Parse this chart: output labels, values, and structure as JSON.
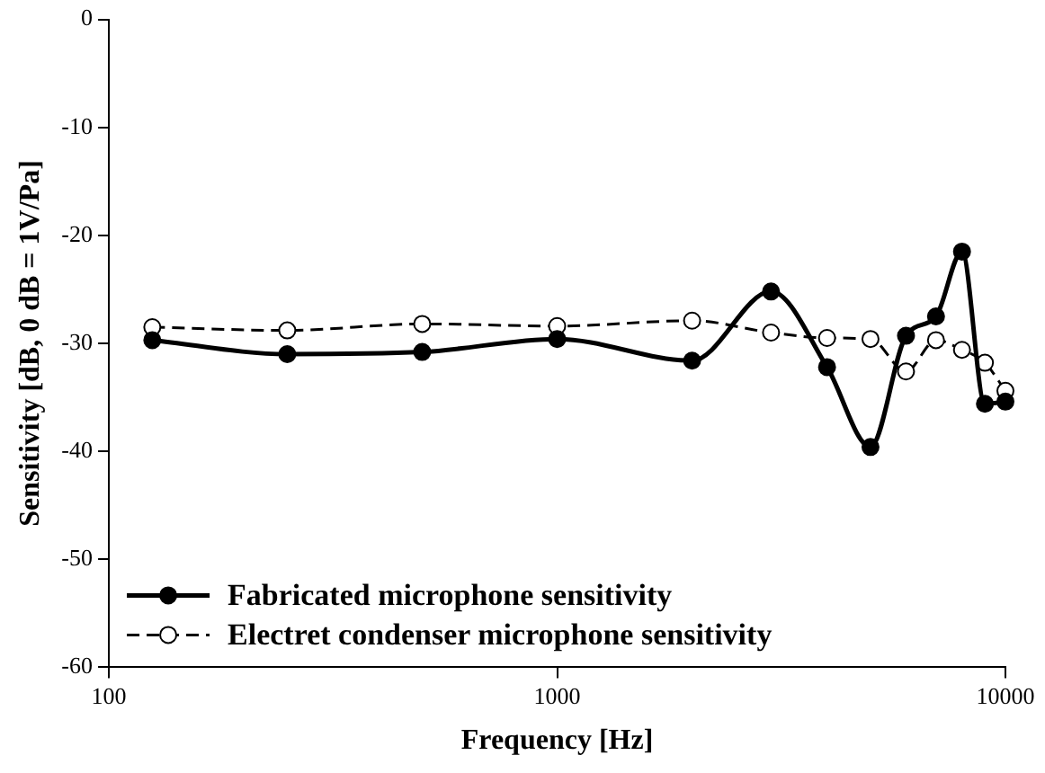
{
  "chart_data": {
    "type": "line",
    "xlabel": "Frequency [Hz]",
    "ylabel": "Sensitivity [dB, 0 dB = 1V/Pa]",
    "x": [
      125,
      250,
      500,
      1000,
      2000,
      3000,
      4000,
      5000,
      6000,
      7000,
      8000,
      9000,
      10000
    ],
    "series": [
      {
        "name": "Fabricated microphone sensitivity",
        "color": "#000000",
        "marker": "circle",
        "line_style": "solid",
        "values": [
          -29.7,
          -31.0,
          -30.8,
          -29.6,
          -31.6,
          -25.2,
          -32.2,
          -39.6,
          -29.3,
          -27.5,
          -21.5,
          -35.6,
          -35.4
        ]
      },
      {
        "name": "Electret condenser microphone sensitivity",
        "color": "#000000",
        "marker": "circle",
        "line_style": "dashed",
        "values": [
          -28.5,
          -28.8,
          -28.2,
          -28.4,
          -27.9,
          -29.0,
          -29.5,
          -29.6,
          -32.6,
          -29.7,
          -30.6,
          -31.8,
          -34.4
        ]
      }
    ],
    "log": "x",
    "xlim": [
      100,
      10000
    ],
    "xticks": [
      100,
      1000,
      10000
    ],
    "ylim": [
      -60,
      0
    ],
    "yticks": [
      -60,
      -50,
      -40,
      -30,
      -20,
      -10,
      0
    ],
    "grid": false,
    "legend": "bottom left"
  }
}
